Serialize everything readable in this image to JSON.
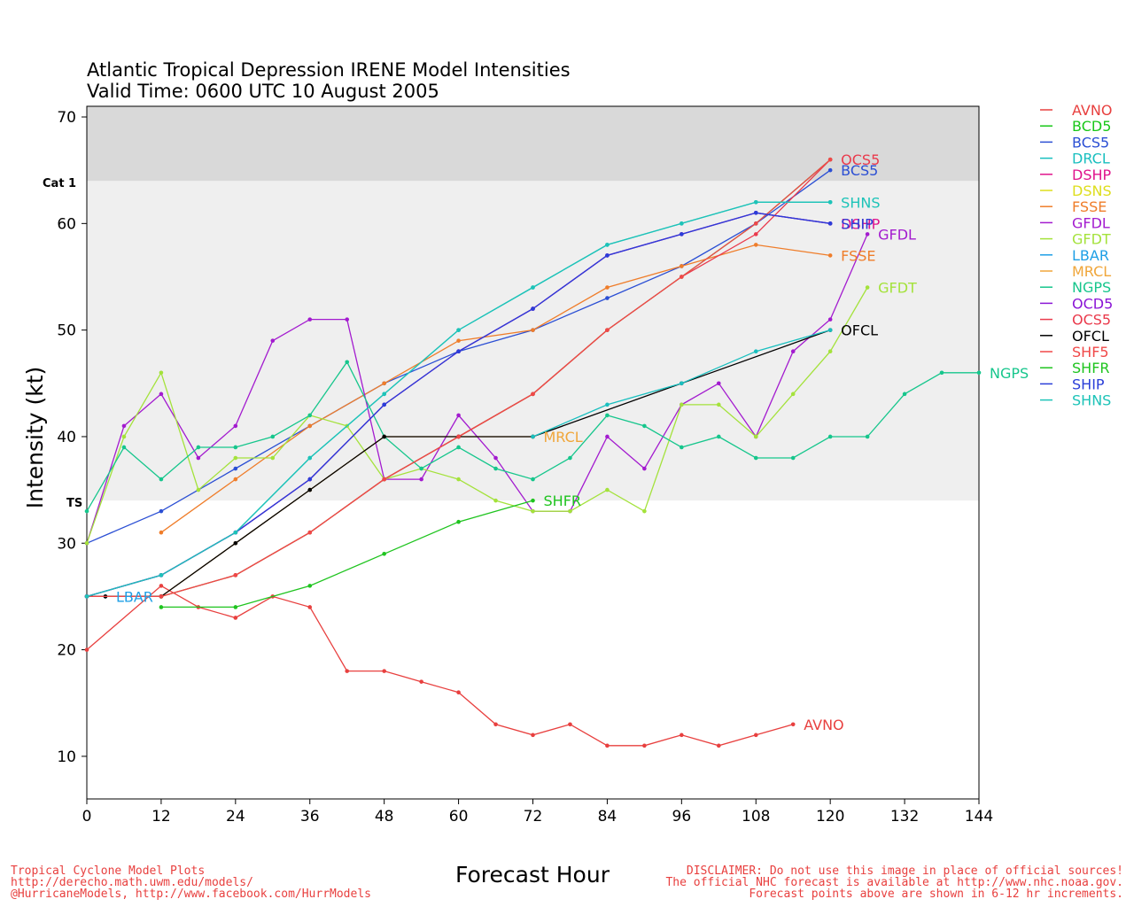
{
  "chart_data": {
    "type": "line",
    "title": "Atlantic Tropical Depression IRENE Model Intensities",
    "subtitle": "Valid Time: 0600 UTC 10 August 2005",
    "xlabel": "Forecast Hour",
    "ylabel": "Intensity (kt)",
    "xlim": [
      0,
      144
    ],
    "ylim": [
      6,
      71
    ],
    "x_ticks": [
      0,
      12,
      24,
      36,
      48,
      60,
      72,
      84,
      96,
      108,
      120,
      132,
      144
    ],
    "y_ticks": [
      10,
      20,
      30,
      40,
      50,
      60,
      70
    ],
    "bands": [
      {
        "label": "TS",
        "from": 34,
        "to": 64,
        "color": "#efefef"
      },
      {
        "label": "Cat 1",
        "from": 64,
        "to": 71,
        "color": "#d9d9d9"
      }
    ],
    "legend_position": "right",
    "series": [
      {
        "name": "AVNO",
        "color": "#e8403f",
        "end_label": "AVNO",
        "points": [
          [
            0,
            20
          ],
          [
            12,
            26
          ],
          [
            18,
            24
          ],
          [
            24,
            23
          ],
          [
            30,
            25
          ],
          [
            36,
            24
          ],
          [
            42,
            18
          ],
          [
            48,
            18
          ],
          [
            54,
            17
          ],
          [
            60,
            16
          ],
          [
            66,
            13
          ],
          [
            72,
            12
          ],
          [
            78,
            13
          ],
          [
            84,
            11
          ],
          [
            90,
            11
          ],
          [
            96,
            12
          ],
          [
            102,
            11
          ],
          [
            108,
            12
          ],
          [
            114,
            13
          ]
        ]
      },
      {
        "name": "BCD5",
        "color": "#19c719",
        "end_label": "",
        "points": [
          [
            0,
            25
          ],
          [
            12,
            25
          ],
          [
            24,
            27
          ],
          [
            36,
            31
          ],
          [
            48,
            36
          ],
          [
            60,
            40
          ],
          [
            72,
            44
          ],
          [
            84,
            50
          ],
          [
            96,
            55
          ],
          [
            108,
            60
          ],
          [
            120,
            66
          ]
        ]
      },
      {
        "name": "BCS5",
        "color": "#2b4fd4",
        "end_label": "BCS5",
        "points": [
          [
            0,
            30
          ],
          [
            12,
            33
          ],
          [
            24,
            37
          ],
          [
            36,
            41
          ],
          [
            48,
            45
          ],
          [
            60,
            48
          ],
          [
            72,
            50
          ],
          [
            84,
            53
          ],
          [
            96,
            56
          ],
          [
            108,
            60
          ],
          [
            120,
            65
          ]
        ]
      },
      {
        "name": "DRCL",
        "color": "#19bfbf",
        "end_label": "",
        "points": [
          [
            0,
            25
          ],
          [
            12,
            27
          ],
          [
            24,
            31
          ],
          [
            36,
            38
          ],
          [
            48,
            44
          ],
          [
            60,
            50
          ],
          [
            72,
            54
          ],
          [
            84,
            58
          ],
          [
            96,
            60
          ],
          [
            108,
            62
          ],
          [
            120,
            62
          ]
        ]
      },
      {
        "name": "DSHP",
        "color": "#e0148c",
        "end_label": "DSHP",
        "points": [
          [
            0,
            25
          ],
          [
            12,
            27
          ],
          [
            24,
            31
          ],
          [
            36,
            36
          ],
          [
            48,
            43
          ],
          [
            60,
            48
          ],
          [
            72,
            52
          ],
          [
            84,
            57
          ],
          [
            96,
            59
          ],
          [
            108,
            61
          ],
          [
            120,
            60
          ]
        ]
      },
      {
        "name": "DSNS",
        "color": "#dede1c",
        "end_label": "",
        "points": []
      },
      {
        "name": "FSSE",
        "color": "#ef7d2a",
        "end_label": "FSSE",
        "points": [
          [
            12,
            31
          ],
          [
            24,
            36
          ],
          [
            36,
            41
          ],
          [
            48,
            45
          ],
          [
            60,
            49
          ],
          [
            72,
            50
          ],
          [
            84,
            54
          ],
          [
            96,
            56
          ],
          [
            108,
            58
          ],
          [
            120,
            57
          ]
        ]
      },
      {
        "name": "GFDL",
        "color": "#a31bcf",
        "end_label": "GFDL",
        "points": [
          [
            0,
            30
          ],
          [
            6,
            41
          ],
          [
            12,
            44
          ],
          [
            18,
            38
          ],
          [
            24,
            41
          ],
          [
            30,
            49
          ],
          [
            36,
            51
          ],
          [
            42,
            51
          ],
          [
            48,
            36
          ],
          [
            54,
            36
          ],
          [
            60,
            42
          ],
          [
            66,
            38
          ],
          [
            72,
            33
          ],
          [
            78,
            33
          ],
          [
            84,
            40
          ],
          [
            90,
            37
          ],
          [
            96,
            43
          ],
          [
            102,
            45
          ],
          [
            108,
            40
          ],
          [
            114,
            48
          ],
          [
            120,
            51
          ],
          [
            126,
            59
          ]
        ]
      },
      {
        "name": "GFDT",
        "color": "#a4e23b",
        "end_label": "GFDT",
        "points": [
          [
            0,
            30
          ],
          [
            6,
            40
          ],
          [
            12,
            46
          ],
          [
            18,
            35
          ],
          [
            24,
            38
          ],
          [
            30,
            38
          ],
          [
            36,
            42
          ],
          [
            42,
            41
          ],
          [
            48,
            36
          ],
          [
            54,
            37
          ],
          [
            60,
            36
          ],
          [
            66,
            34
          ],
          [
            72,
            33
          ],
          [
            78,
            33
          ],
          [
            84,
            35
          ],
          [
            90,
            33
          ],
          [
            96,
            43
          ],
          [
            102,
            43
          ],
          [
            108,
            40
          ],
          [
            114,
            44
          ],
          [
            120,
            48
          ],
          [
            126,
            54
          ]
        ]
      },
      {
        "name": "LBAR",
        "color": "#1e9fe6",
        "end_label": "LBAR",
        "points": [
          [
            0,
            25
          ],
          [
            3,
            25
          ]
        ]
      },
      {
        "name": "MRCL",
        "color": "#f0a63a",
        "end_label": "MRCL",
        "points": [
          [
            0,
            25
          ],
          [
            12,
            25
          ],
          [
            24,
            30
          ],
          [
            36,
            35
          ],
          [
            48,
            40
          ],
          [
            60,
            40
          ],
          [
            72,
            40
          ]
        ]
      },
      {
        "name": "NGPS",
        "color": "#16c68c",
        "end_label": "NGPS",
        "points": [
          [
            0,
            33
          ],
          [
            6,
            39
          ],
          [
            12,
            36
          ],
          [
            18,
            39
          ],
          [
            24,
            39
          ],
          [
            30,
            40
          ],
          [
            36,
            42
          ],
          [
            42,
            47
          ],
          [
            48,
            40
          ],
          [
            54,
            37
          ],
          [
            60,
            39
          ],
          [
            66,
            37
          ],
          [
            72,
            36
          ],
          [
            78,
            38
          ],
          [
            84,
            42
          ],
          [
            90,
            41
          ],
          [
            96,
            39
          ],
          [
            102,
            40
          ],
          [
            108,
            38
          ],
          [
            114,
            38
          ],
          [
            120,
            40
          ],
          [
            126,
            40
          ],
          [
            132,
            44
          ],
          [
            138,
            46
          ],
          [
            144,
            46
          ]
        ]
      },
      {
        "name": "OCD5",
        "color": "#8a15d6",
        "end_label": "",
        "points": [
          [
            0,
            25
          ],
          [
            12,
            27
          ],
          [
            24,
            31
          ],
          [
            36,
            36
          ],
          [
            48,
            43
          ],
          [
            60,
            48
          ],
          [
            72,
            52
          ],
          [
            84,
            57
          ],
          [
            96,
            59
          ],
          [
            108,
            61
          ],
          [
            120,
            60
          ]
        ]
      },
      {
        "name": "OCS5",
        "color": "#ea3a4c",
        "end_label": "OCS5",
        "points": [
          [
            0,
            25
          ],
          [
            12,
            25
          ],
          [
            24,
            27
          ],
          [
            36,
            31
          ],
          [
            48,
            36
          ],
          [
            60,
            40
          ],
          [
            72,
            44
          ],
          [
            84,
            50
          ],
          [
            96,
            55
          ],
          [
            108,
            59
          ],
          [
            120,
            66
          ]
        ]
      },
      {
        "name": "OFCL",
        "color": "#000000",
        "end_label": "OFCL",
        "points": [
          [
            0,
            25
          ],
          [
            3,
            25
          ],
          [
            12,
            25
          ],
          [
            24,
            30
          ],
          [
            36,
            35
          ],
          [
            48,
            40
          ],
          [
            60,
            40
          ],
          [
            72,
            40
          ],
          [
            96,
            45
          ],
          [
            120,
            50
          ]
        ]
      },
      {
        "name": "SHF5",
        "color": "#f04848",
        "end_label": "",
        "points": [
          [
            0,
            25
          ],
          [
            12,
            25
          ],
          [
            24,
            27
          ],
          [
            36,
            31
          ],
          [
            48,
            36
          ],
          [
            60,
            40
          ],
          [
            72,
            44
          ],
          [
            84,
            50
          ],
          [
            96,
            55
          ],
          [
            108,
            60
          ],
          [
            120,
            66
          ]
        ]
      },
      {
        "name": "SHFR",
        "color": "#1fc41f",
        "end_label": "SHFR",
        "points": [
          [
            12,
            24
          ],
          [
            24,
            24
          ],
          [
            36,
            26
          ],
          [
            48,
            29
          ],
          [
            60,
            32
          ],
          [
            72,
            34
          ]
        ]
      },
      {
        "name": "SHIP",
        "color": "#2a3ed8",
        "end_label": "SHIP",
        "points": [
          [
            0,
            25
          ],
          [
            12,
            27
          ],
          [
            24,
            31
          ],
          [
            36,
            36
          ],
          [
            48,
            43
          ],
          [
            60,
            48
          ],
          [
            72,
            52
          ],
          [
            84,
            57
          ],
          [
            96,
            59
          ],
          [
            108,
            61
          ],
          [
            120,
            60
          ]
        ]
      },
      {
        "name": "SHNS",
        "color": "#1dc3b8",
        "end_label": "SHNS",
        "points": [
          [
            0,
            25
          ],
          [
            12,
            27
          ],
          [
            24,
            31
          ],
          [
            36,
            38
          ],
          [
            48,
            44
          ],
          [
            60,
            50
          ],
          [
            72,
            54
          ],
          [
            84,
            58
          ],
          [
            96,
            60
          ],
          [
            108,
            62
          ],
          [
            120,
            62
          ]
        ]
      }
    ],
    "extra_line": {
      "name": "DRCL",
      "color": "#19bfbf",
      "points": [
        [
          72,
          40
        ],
        [
          84,
          43
        ],
        [
          96,
          45
        ],
        [
          108,
          48
        ],
        [
          120,
          50
        ]
      ]
    }
  },
  "labels": {
    "cat1": "Cat 1",
    "ts": "TS"
  },
  "footer": {
    "left_line1": "Tropical Cyclone Model Plots",
    "left_line2": "http://derecho.math.uwm.edu/models/",
    "left_line3": "@HurricaneModels, http://www.facebook.com/HurrModels",
    "right_line1": "DISCLAIMER: Do not use this image in place of official sources!",
    "right_line2": "The official NHC forecast is available at http://www.nhc.noaa.gov.",
    "right_line3": "Forecast points above are shown in 6-12 hr increments.",
    "color": "#e8403f"
  }
}
